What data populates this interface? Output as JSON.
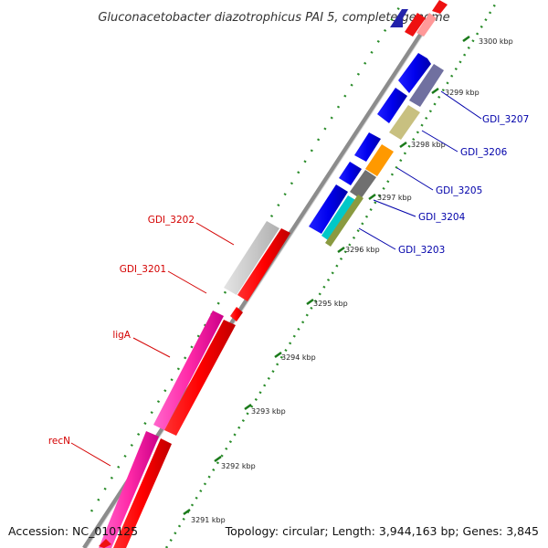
{
  "title": "Gluconacetobacter diazotrophicus PAI 5, complete genome",
  "accession": "Accession: NC_010125",
  "topology": "Topology: circular; Length: 3,944,163 bp; Genes: 3,845",
  "ticks": [
    "3291 kbp",
    "3292 kbp",
    "3293 kbp",
    "3294 kbp",
    "3295 kbp",
    "3296 kbp",
    "3297 kbp",
    "3298 kbp",
    "3299 kbp",
    "3300 kbp"
  ],
  "labels": [
    {
      "id": "GDI_3207",
      "text": "GDI_3207",
      "strand": "forward"
    },
    {
      "id": "GDI_3206",
      "text": "GDI_3206",
      "strand": "forward"
    },
    {
      "id": "GDI_3205",
      "text": "GDI_3205",
      "strand": "forward"
    },
    {
      "id": "GDI_3204",
      "text": "GDI_3204",
      "strand": "forward"
    },
    {
      "id": "GDI_3203",
      "text": "GDI_3203",
      "strand": "forward"
    },
    {
      "id": "GDI_3202",
      "text": "GDI_3202",
      "strand": "reverse"
    },
    {
      "id": "GDI_3201",
      "text": "GDI_3201",
      "strand": "reverse"
    },
    {
      "id": "ligA",
      "text": "ligA",
      "strand": "reverse"
    },
    {
      "id": "recN",
      "text": "recN",
      "strand": "reverse"
    }
  ],
  "colors": {
    "forward_label": "#0000aa",
    "reverse_label": "#d40000",
    "backbone": "#808080",
    "tick": "#1a8a1a"
  }
}
